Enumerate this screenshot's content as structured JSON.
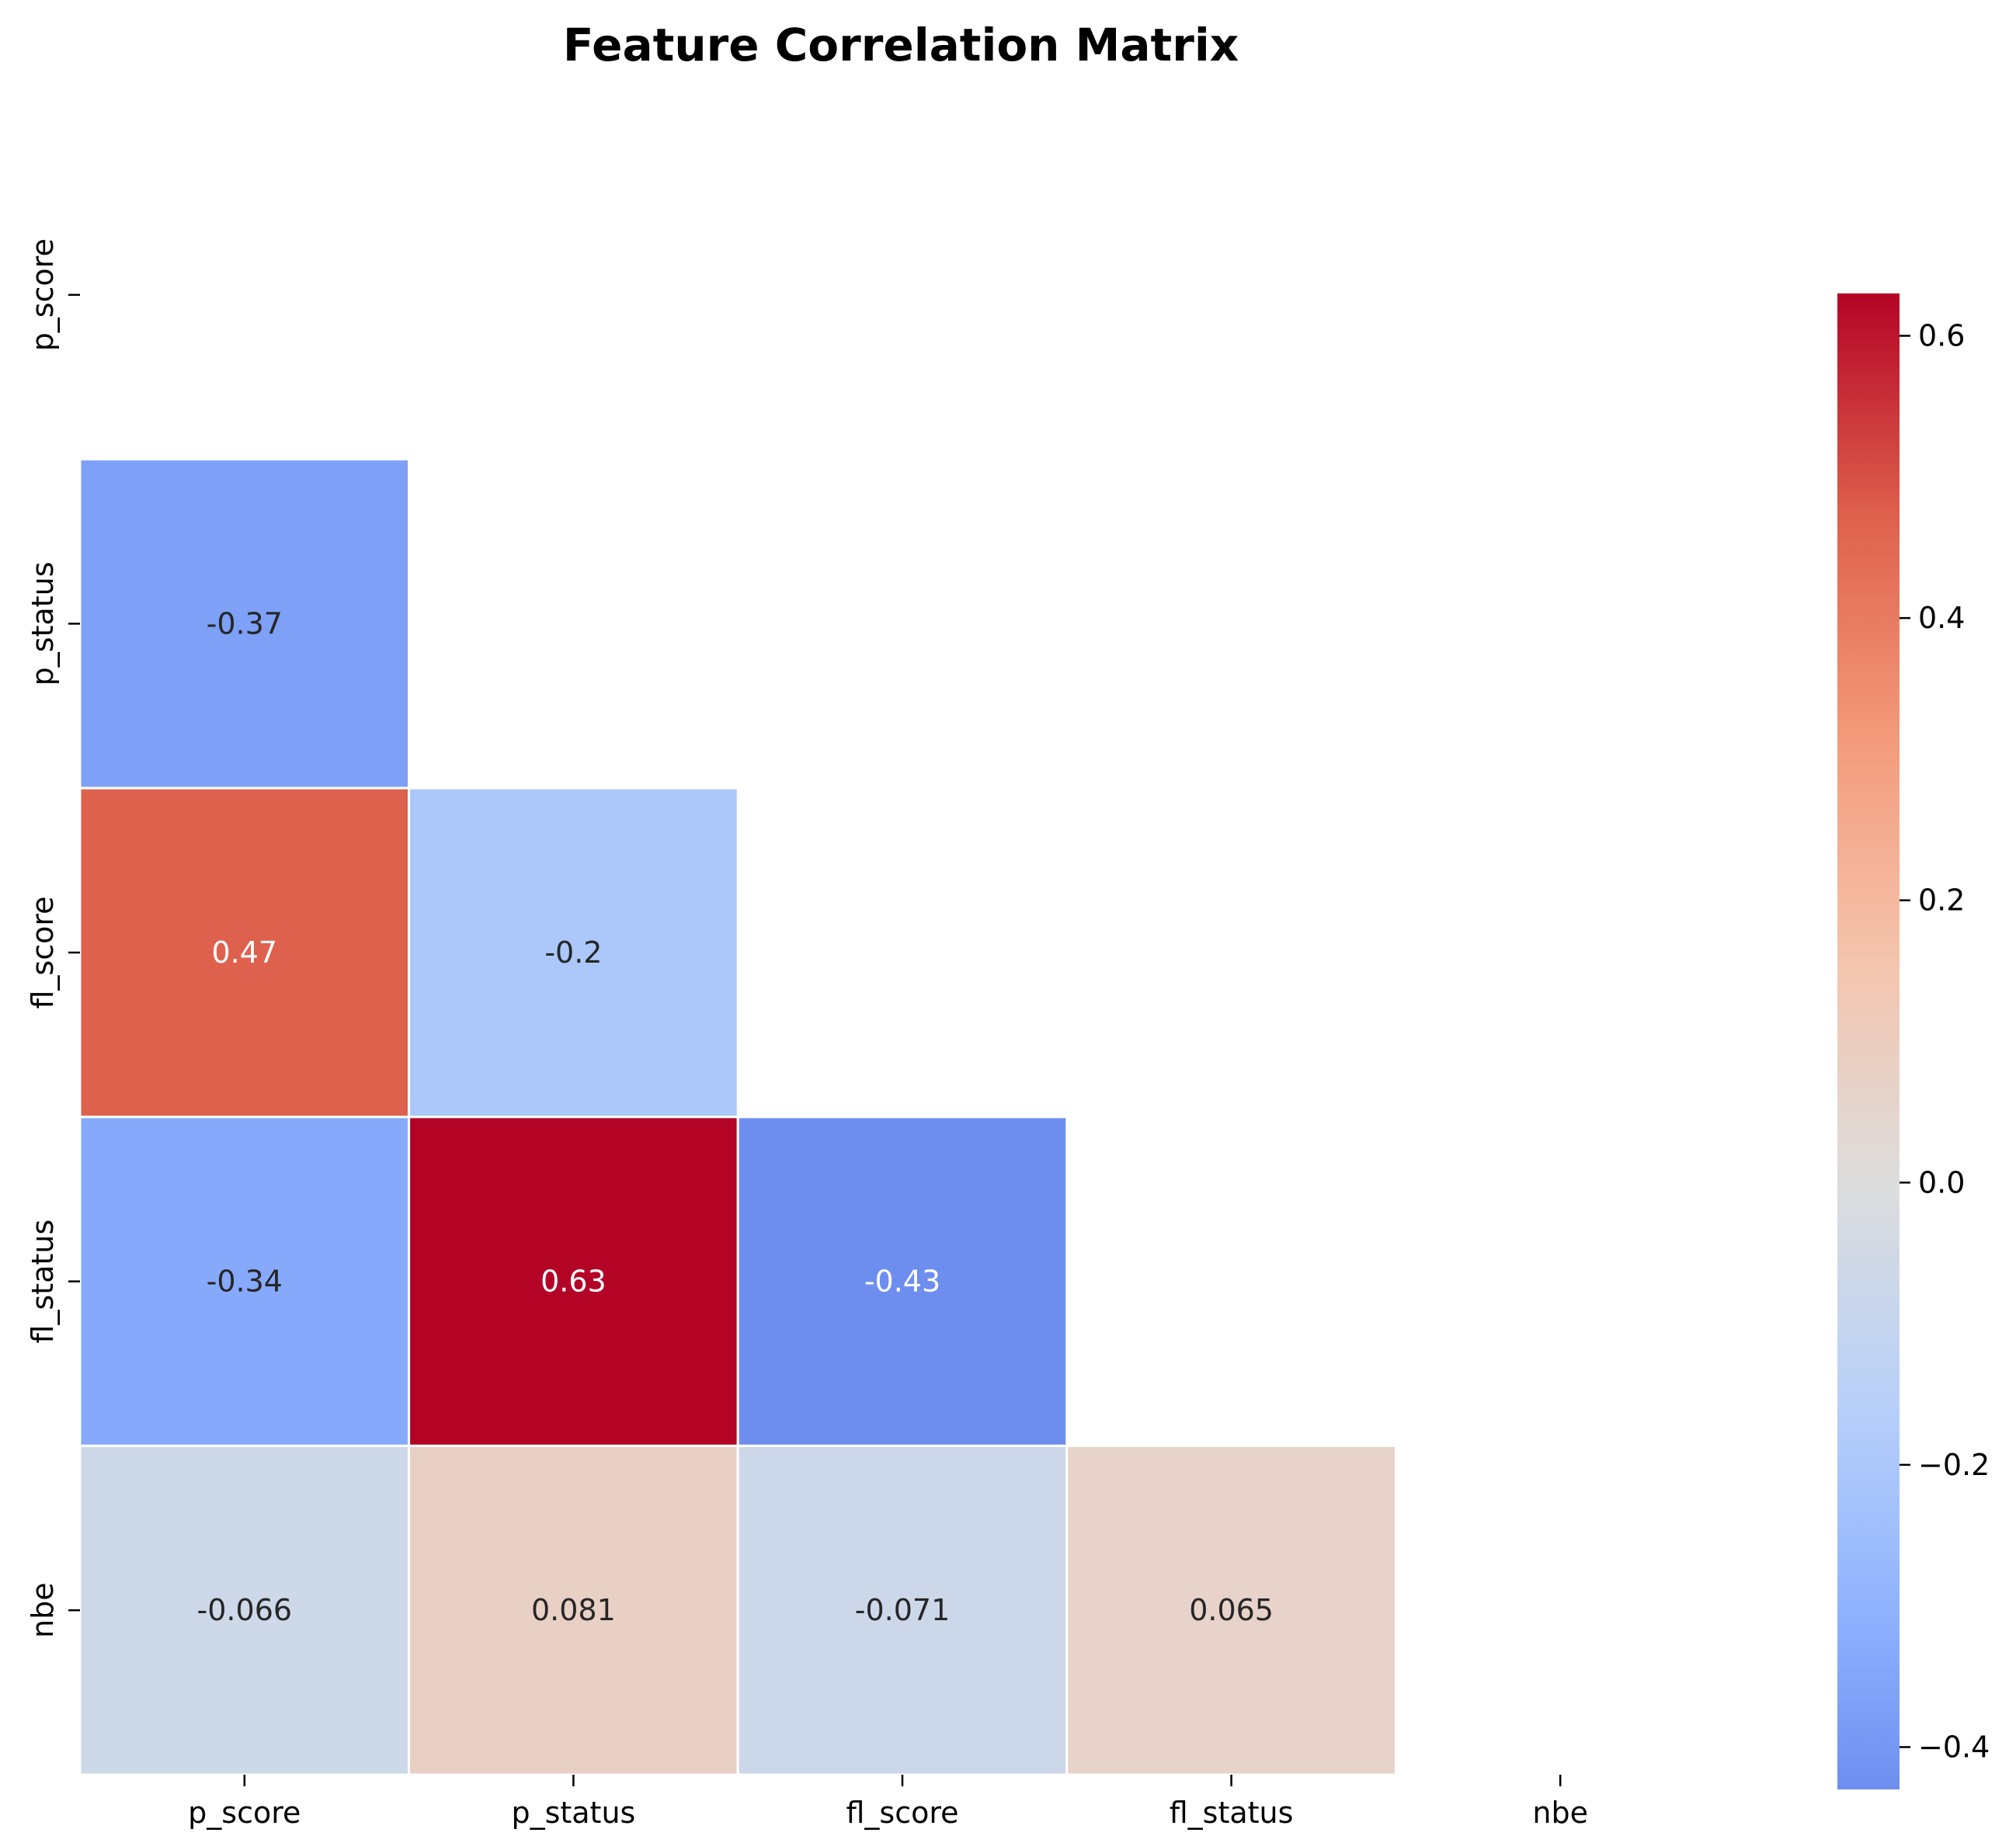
{
  "chart_data": {
    "type": "heatmap",
    "title": "Feature Correlation Matrix",
    "xlabel": "",
    "ylabel": "",
    "variables": [
      "p_score",
      "p_status",
      "fl_score",
      "fl_status",
      "nbe"
    ],
    "mask": "upper-triangle-including-diagonal",
    "cells": [
      {
        "row": 1,
        "col": 0,
        "value": -0.37,
        "label": "-0.37"
      },
      {
        "row": 2,
        "col": 0,
        "value": 0.47,
        "label": "0.47"
      },
      {
        "row": 2,
        "col": 1,
        "value": -0.2,
        "label": "-0.2"
      },
      {
        "row": 3,
        "col": 0,
        "value": -0.34,
        "label": "-0.34"
      },
      {
        "row": 3,
        "col": 1,
        "value": 0.63,
        "label": "0.63"
      },
      {
        "row": 3,
        "col": 2,
        "value": -0.43,
        "label": "-0.43"
      },
      {
        "row": 4,
        "col": 0,
        "value": -0.066,
        "label": "-0.066"
      },
      {
        "row": 4,
        "col": 1,
        "value": 0.081,
        "label": "0.081"
      },
      {
        "row": 4,
        "col": 2,
        "value": -0.071,
        "label": "-0.071"
      },
      {
        "row": 4,
        "col": 3,
        "value": 0.065,
        "label": "0.065"
      }
    ],
    "colormap": "coolwarm",
    "colorbar": {
      "range": [
        -0.43,
        0.63
      ],
      "ticks": [
        -0.4,
        -0.2,
        0.0,
        0.2,
        0.4,
        0.6
      ],
      "tick_labels": [
        "−0.4",
        "−0.2",
        "0.0",
        "0.2",
        "0.4",
        "0.6"
      ]
    },
    "grid": false
  }
}
